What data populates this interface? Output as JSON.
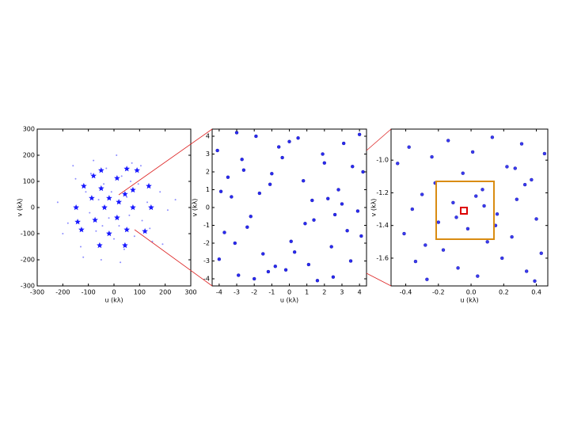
{
  "chart_data": [
    {
      "type": "scatter",
      "x_label": "u (kλ)",
      "y_label": "v (kλ)",
      "xlim": [
        -300,
        300
      ],
      "ylim": [
        -300,
        300
      ],
      "xticks": [
        -300,
        -200,
        -100,
        0,
        100,
        200,
        300
      ],
      "yticks": [
        -300,
        -200,
        -100,
        0,
        100,
        200,
        300
      ],
      "series": [
        {
          "marker": "dot",
          "color": "#8c8cff",
          "x": [
            -220,
            -180,
            -150,
            -130,
            -110,
            -95,
            -80,
            -70,
            -60,
            -50,
            -40,
            -30,
            -20,
            -10,
            0,
            10,
            20,
            30,
            40,
            50,
            60,
            70,
            80,
            95,
            110,
            130,
            150,
            180,
            210,
            240,
            -200,
            -160,
            -120,
            -90,
            -45,
            25,
            65,
            105,
            140,
            190
          ],
          "values": [
            20,
            -60,
            110,
            -150,
            60,
            -20,
            180,
            -90,
            30,
            -200,
            90,
            150,
            -40,
            60,
            -120,
            200,
            -70,
            120,
            -160,
            40,
            -30,
            170,
            -110,
            90,
            -50,
            20,
            -130,
            60,
            -10,
            30,
            -100,
            160,
            -190,
            130,
            -70,
            -210,
            100,
            160,
            -80,
            -140
          ]
        },
        {
          "marker": "star",
          "color": "#1a1aff",
          "x": [
            -50,
            50,
            -148,
            -118,
            -127,
            -56,
            43,
            121,
            145,
            136,
            -87,
            -74,
            -19,
            50,
            74,
            74,
            12,
            -50,
            -37,
            19,
            12,
            -19,
            43,
            -80,
            90,
            -142
          ],
          "values": [
            142,
            148,
            0,
            82,
            -85,
            -145,
            -145,
            -91,
            0,
            82,
            36,
            -48,
            -100,
            -85,
            0,
            67,
            112,
            73,
            0,
            21,
            -39,
            36,
            51,
            121,
            142,
            -55
          ]
        }
      ]
    },
    {
      "type": "scatter",
      "x_label": "u (kλ)",
      "y_label": "v (kλ)",
      "xlim": [
        -4.4,
        4.4
      ],
      "ylim": [
        -4.4,
        4.4
      ],
      "xticks": [
        -4,
        -3,
        -2,
        -1,
        0,
        1,
        2,
        3,
        4
      ],
      "yticks": [
        -4,
        -3,
        -2,
        -1,
        0,
        1,
        2,
        3,
        4
      ],
      "series": [
        {
          "marker": "dot",
          "color": "#2a2af0",
          "x": [
            -4.1,
            -3.7,
            -3.3,
            -2.9,
            -2.6,
            -2.2,
            -1.9,
            -1.5,
            -1.1,
            -0.8,
            -0.4,
            0.1,
            0.5,
            0.9,
            1.3,
            1.6,
            2.0,
            2.4,
            2.8,
            3.1,
            3.5,
            3.9,
            4.2,
            -4.0,
            -3.5,
            -3.0,
            -2.4,
            -1.7,
            -1.2,
            -0.6,
            0.3,
            0.8,
            1.4,
            1.9,
            2.5,
            3.0,
            3.6,
            4.1,
            -3.9,
            -3.1,
            -2.0,
            -1.0,
            0.0,
            1.1,
            2.2,
            3.3,
            4.0,
            -2.7,
            -0.2,
            2.6
          ],
          "values": [
            3.2,
            -1.4,
            0.6,
            -3.8,
            2.1,
            -0.5,
            4.0,
            -2.6,
            1.3,
            -3.3,
            2.8,
            -1.9,
            3.9,
            -0.9,
            0.4,
            -4.1,
            2.5,
            -2.2,
            1.0,
            3.6,
            -3.0,
            -0.2,
            2.0,
            -2.9,
            1.7,
            4.2,
            -1.1,
            0.8,
            -3.6,
            3.4,
            -2.5,
            1.5,
            -0.7,
            3.0,
            -3.9,
            0.2,
            2.3,
            -1.6,
            0.9,
            -2.0,
            -4.0,
            1.9,
            3.7,
            -3.2,
            0.5,
            -1.3,
            4.1,
            2.7,
            -3.5,
            -0.4
          ]
        }
      ]
    },
    {
      "type": "scatter",
      "x_label": "u (kλ)",
      "y_label": "v (kλ)",
      "xlim": [
        -0.49,
        0.47
      ],
      "ylim": [
        -1.77,
        -0.81
      ],
      "xticks": [
        -0.4,
        -0.2,
        {
          "value": 0,
          "label": "0.0"
        },
        0.2,
        0.4
      ],
      "yticks": [
        -1.6,
        -1.4,
        -1.2,
        {
          "value": -1,
          "label": "-1.0"
        }
      ],
      "series": [
        {
          "marker": "dot",
          "color": "#3a3af0",
          "x": [
            -0.45,
            -0.41,
            -0.38,
            -0.34,
            -0.3,
            -0.27,
            -0.24,
            -0.2,
            -0.17,
            -0.14,
            -0.11,
            -0.08,
            -0.05,
            -0.02,
            0.01,
            0.04,
            0.07,
            0.1,
            0.13,
            0.16,
            0.19,
            0.22,
            0.25,
            0.28,
            0.31,
            0.34,
            0.37,
            0.4,
            0.43,
            0.45,
            -0.36,
            -0.22,
            -0.09,
            0.03,
            0.15,
            0.27,
            0.39,
            -0.28,
            0.08,
            0.33
          ],
          "values": [
            -1.02,
            -1.45,
            -0.92,
            -1.62,
            -1.21,
            -1.73,
            -0.98,
            -1.38,
            -1.55,
            -0.88,
            -1.26,
            -1.66,
            -1.08,
            -1.42,
            -0.95,
            -1.71,
            -1.18,
            -1.5,
            -0.86,
            -1.33,
            -1.6,
            -1.04,
            -1.47,
            -1.24,
            -0.9,
            -1.68,
            -1.12,
            -1.36,
            -1.57,
            -0.96,
            -1.3,
            -1.14,
            -1.35,
            -1.22,
            -1.4,
            -1.05,
            -1.74,
            -1.52,
            -1.28,
            -1.15
          ]
        }
      ]
    }
  ]
}
